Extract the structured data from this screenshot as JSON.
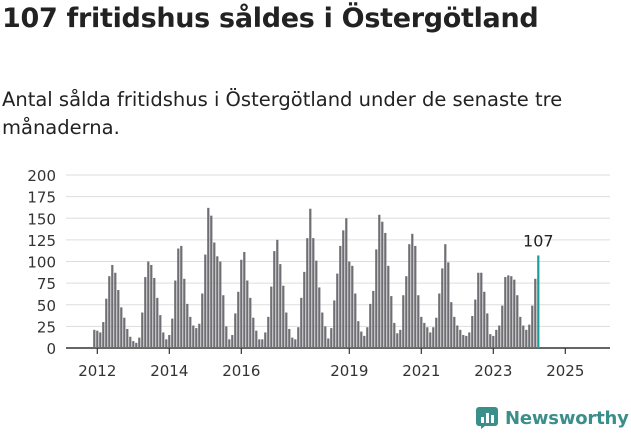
{
  "title": "107 fritidshus såldes i Östergötland",
  "subtitle": "Antal sålda fritidshus i Östergötland under de senaste tre månaderna.",
  "brand": {
    "name": "Newsworthy",
    "icon": "newsworthy-logo-icon",
    "color": "#3a8f8a"
  },
  "colors": {
    "bar": "#6e6e73",
    "highlight": "#1a9e97",
    "grid": "#dddddd",
    "axis": "#333333"
  },
  "chart_data": {
    "type": "bar",
    "title": "107 fritidshus såldes i Östergötland",
    "xlabel": "",
    "ylabel": "",
    "ylim": [
      0,
      200
    ],
    "yticks": [
      "0",
      "25",
      "50",
      "75",
      "100",
      "125",
      "150",
      "175",
      "200"
    ],
    "xticks": [
      {
        "label": "2012",
        "year": 2012
      },
      {
        "label": "2014",
        "year": 2014
      },
      {
        "label": "2016",
        "year": 2016
      },
      {
        "label": "2019",
        "year": 2019
      },
      {
        "label": "2021",
        "year": 2021
      },
      {
        "label": "2023",
        "year": 2023
      },
      {
        "label": "2025",
        "year": 2025
      }
    ],
    "first_period": "2011-12",
    "grid": true,
    "highlight_label": "107",
    "values": [
      21,
      20,
      18,
      30,
      57,
      83,
      96,
      87,
      67,
      47,
      35,
      22,
      13,
      8,
      6,
      12,
      41,
      82,
      100,
      96,
      81,
      58,
      38,
      18,
      10,
      15,
      34,
      78,
      115,
      118,
      80,
      51,
      36,
      26,
      23,
      28,
      63,
      108,
      162,
      153,
      122,
      106,
      100,
      61,
      25,
      10,
      15,
      40,
      65,
      102,
      111,
      78,
      58,
      35,
      20,
      10,
      10,
      18,
      36,
      71,
      112,
      125,
      97,
      72,
      41,
      22,
      12,
      10,
      24,
      58,
      88,
      127,
      161,
      127,
      101,
      70,
      41,
      25,
      11,
      23,
      55,
      86,
      118,
      136,
      150,
      100,
      95,
      63,
      31,
      19,
      14,
      24,
      51,
      66,
      114,
      154,
      146,
      133,
      95,
      60,
      29,
      17,
      21,
      61,
      83,
      120,
      132,
      118,
      61,
      36,
      29,
      24,
      18,
      24,
      35,
      63,
      92,
      120,
      99,
      53,
      36,
      26,
      21,
      15,
      14,
      18,
      37,
      56,
      87,
      87,
      65,
      40,
      16,
      14,
      21,
      26,
      49,
      82,
      84,
      83,
      79,
      61,
      36,
      26,
      21,
      27,
      49,
      80,
      107
    ]
  }
}
